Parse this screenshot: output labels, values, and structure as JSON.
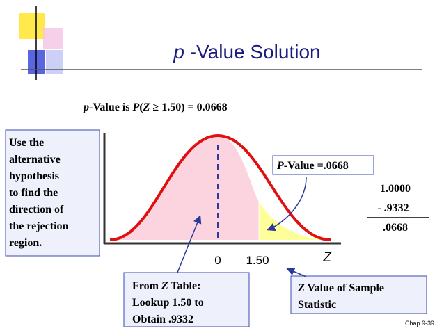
{
  "title": [
    "p",
    " -Value Solution"
  ],
  "subtitle": [
    "p",
    "-Value is ",
    "P",
    "(",
    "Z",
    " ≥  1.50) = 0.0668"
  ],
  "left_note": [
    "Use the",
    "alternative",
    "hypothesis",
    "to find the",
    "direction of",
    "the rejection",
    "region."
  ],
  "callout": [
    "P",
    "-Value =.0668"
  ],
  "calculation": [
    "1.0000",
    "- .9332",
    ".0668"
  ],
  "axis_labels": [
    "0",
    "1.50",
    "Z"
  ],
  "table_note": [
    [
      "From ",
      "Z",
      " Table:"
    ],
    [
      "Lookup 1.50 to"
    ],
    [
      "Obtain .9332"
    ]
  ],
  "statistic_note": [
    [
      "Z",
      " Value of Sample"
    ],
    [
      "Statistic"
    ]
  ],
  "footer": "Chap 9-39"
}
